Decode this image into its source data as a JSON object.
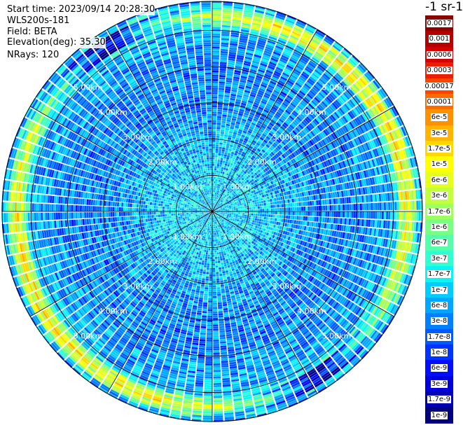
{
  "header": {
    "start_time": "Start time: 2023/09/14 20:28:30",
    "instrument": "WLS200s-181",
    "field": "Field: BETA",
    "elevation": "Elevation(deg): 35.30",
    "nrays": "NRays: 120"
  },
  "colorbar": {
    "title": "-1 sr-1",
    "labels": [
      "0.0017",
      "0.001",
      "0.0006",
      "0.0003",
      "0.00017",
      "0.0001",
      "6e-5",
      "3e-5",
      "1.7e-5",
      "1e-5",
      "6e-6",
      "3e-6",
      "1.7e-6",
      "1e-6",
      "6e-7",
      "3e-7",
      "1.7e-7",
      "1e-7",
      "6e-8",
      "3e-8",
      "1.7e-8",
      "1e-8",
      "6e-9",
      "3e-9",
      "1.7e-9",
      "1e-9"
    ],
    "colors": [
      "#8b0000",
      "#b30000",
      "#d40000",
      "#ee1c00",
      "#ff4400",
      "#ff6a00",
      "#ff9000",
      "#ffb400",
      "#ffd800",
      "#ffff00",
      "#e6ff1a",
      "#c2ff3d",
      "#9eff61",
      "#7aff85",
      "#55ffaa",
      "#31ffce",
      "#0df2f2",
      "#00ccff",
      "#00a6ff",
      "#0080ff",
      "#005aff",
      "#0033ff",
      "#000dff",
      "#0000dd",
      "#0000b0",
      "#000080"
    ]
  },
  "chart_data": {
    "type": "heatmap",
    "subtype": "polar-ppi",
    "field": "BETA",
    "nrays": 120,
    "range_unit": "km",
    "range_max_km": 5.8,
    "range_rings_km": [
      1.0,
      2.0,
      3.0,
      4.0,
      5.0
    ],
    "ring_labels": [
      "1.00km",
      "2.00km",
      "3.00km",
      "4.00km",
      "5.00km"
    ],
    "radial_lines_deg": [
      0,
      30,
      60,
      90,
      120,
      150,
      180,
      210,
      240,
      270,
      300,
      330
    ],
    "color_scale": "log",
    "color_range": [
      1e-09,
      0.0017
    ],
    "radial_profile": [
      {
        "range_km": 0.0,
        "beta": 1e-07
      },
      {
        "range_km": 1.0,
        "beta": 1e-07
      },
      {
        "range_km": 2.0,
        "beta": 6e-08
      },
      {
        "range_km": 3.0,
        "beta": 3e-08
      },
      {
        "range_km": 4.0,
        "beta": 3e-08
      },
      {
        "range_km": 5.0,
        "beta": 6e-08
      },
      {
        "range_km": 5.4,
        "beta": 3e-06
      },
      {
        "range_km": 5.8,
        "beta": 3e-08
      }
    ]
  }
}
